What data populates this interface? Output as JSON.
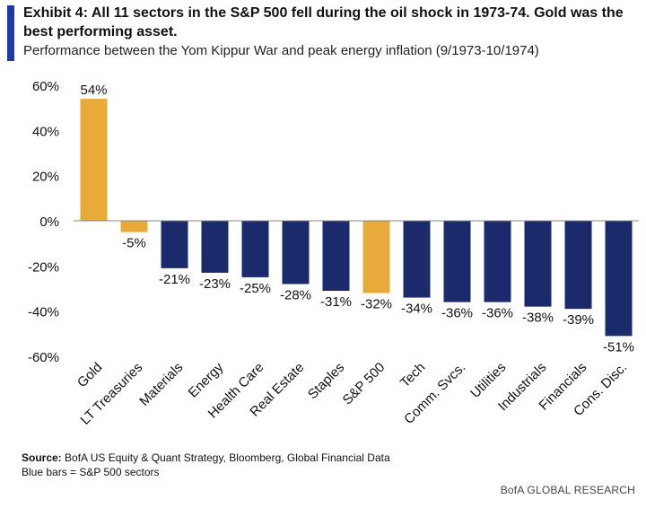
{
  "header": {
    "title": "Exhibit 4: All 11 sectors in the S&P 500 fell during the oil shock in 1973-74. Gold was the best performing asset.",
    "subtitle": "Performance between the Yom Kippur War and peak energy inflation (9/1973-10/1974)"
  },
  "chart_data": {
    "type": "bar",
    "categories": [
      "Gold",
      "LT Treasuries",
      "Materials",
      "Energy",
      "Health Care",
      "Real Estate",
      "Staples",
      "S&P 500",
      "Tech",
      "Comm. Svcs.",
      "Utilities",
      "Industrials",
      "Financials",
      "Cons. Disc."
    ],
    "values": [
      54,
      -5,
      -21,
      -23,
      -25,
      -28,
      -31,
      -32,
      -34,
      -36,
      -36,
      -38,
      -39,
      -51
    ],
    "value_labels": [
      "54%",
      "-5%",
      "-21%",
      "-23%",
      "-25%",
      "-28%",
      "-31%",
      "-32%",
      "-34%",
      "-36%",
      "-36%",
      "-38%",
      "-39%",
      "-51%"
    ],
    "highlight": [
      true,
      true,
      false,
      false,
      false,
      false,
      false,
      true,
      false,
      false,
      false,
      false,
      false,
      false
    ],
    "y_ticks": [
      60,
      40,
      20,
      0,
      -20,
      -40,
      -60
    ],
    "y_tick_labels": [
      "60%",
      "40%",
      "20%",
      "0%",
      "-20%",
      "-40%",
      "-60%"
    ],
    "ylim": [
      -60,
      60
    ],
    "xlabel": "",
    "ylabel": "",
    "colors": {
      "sector": "#1b2a6b",
      "highlight": "#e8ab3a",
      "axis": "#888888"
    }
  },
  "footer": {
    "source_label": "Source:",
    "source_text": " BofA US Equity & Quant Strategy, Bloomberg, Global Financial Data",
    "note": "Blue bars = S&P 500 sectors",
    "brand": "BofA GLOBAL RESEARCH"
  }
}
